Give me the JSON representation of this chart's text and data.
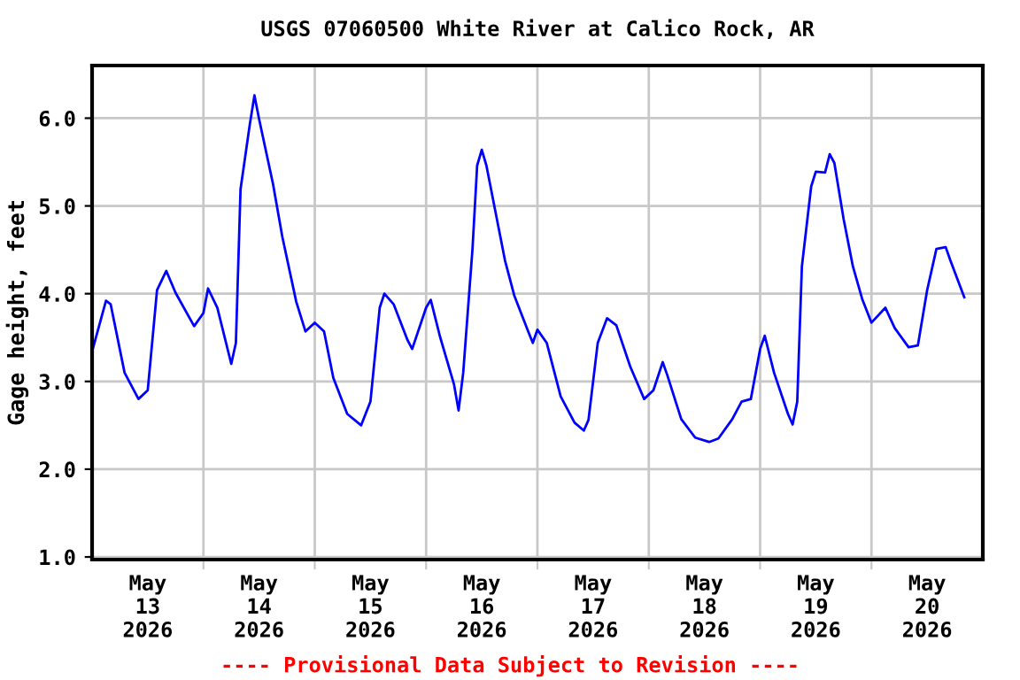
{
  "chart_data": {
    "type": "line",
    "title": "USGS 07060500 White River at Calico Rock, AR",
    "ylabel": "Gage height, feet",
    "annotations": [
      "---- Provisional Data Subject to Revision ----"
    ],
    "x": [
      "2026-05-13T00:00",
      "2026-05-13T03:00",
      "2026-05-13T04:00",
      "2026-05-13T07:00",
      "2026-05-13T10:00",
      "2026-05-13T12:00",
      "2026-05-13T14:00",
      "2026-05-13T16:00",
      "2026-05-13T18:00",
      "2026-05-13T22:00",
      "2026-05-14T00:00",
      "2026-05-14T01:00",
      "2026-05-14T03:00",
      "2026-05-14T06:00",
      "2026-05-14T07:00",
      "2026-05-14T08:00",
      "2026-05-14T10:00",
      "2026-05-14T11:00",
      "2026-05-14T12:00",
      "2026-05-14T15:00",
      "2026-05-14T17:00",
      "2026-05-14T20:00",
      "2026-05-14T22:00",
      "2026-05-15T00:00",
      "2026-05-15T02:00",
      "2026-05-15T04:00",
      "2026-05-15T07:00",
      "2026-05-15T10:00",
      "2026-05-15T12:00",
      "2026-05-15T14:00",
      "2026-05-15T15:00",
      "2026-05-15T17:00",
      "2026-05-15T20:00",
      "2026-05-15T21:00",
      "2026-05-16T00:00",
      "2026-05-16T01:00",
      "2026-05-16T03:00",
      "2026-05-16T06:00",
      "2026-05-16T07:00",
      "2026-05-16T08:00",
      "2026-05-16T10:00",
      "2026-05-16T11:00",
      "2026-05-16T12:00",
      "2026-05-16T13:00",
      "2026-05-16T15:00",
      "2026-05-16T17:00",
      "2026-05-16T19:00",
      "2026-05-16T22:00",
      "2026-05-16T23:00",
      "2026-05-17T00:00",
      "2026-05-17T02:00",
      "2026-05-17T05:00",
      "2026-05-17T08:00",
      "2026-05-17T10:00",
      "2026-05-17T11:00",
      "2026-05-17T13:00",
      "2026-05-17T15:00",
      "2026-05-17T17:00",
      "2026-05-17T20:00",
      "2026-05-17T23:00",
      "2026-05-18T01:00",
      "2026-05-18T03:00",
      "2026-05-18T04:00",
      "2026-05-18T07:00",
      "2026-05-18T10:00",
      "2026-05-18T13:00",
      "2026-05-18T15:00",
      "2026-05-18T18:00",
      "2026-05-18T20:00",
      "2026-05-18T22:00",
      "2026-05-19T00:00",
      "2026-05-19T01:00",
      "2026-05-19T03:00",
      "2026-05-19T06:00",
      "2026-05-19T07:00",
      "2026-05-19T08:00",
      "2026-05-19T09:00",
      "2026-05-19T11:00",
      "2026-05-19T12:00",
      "2026-05-19T14:00",
      "2026-05-19T15:00",
      "2026-05-19T16:00",
      "2026-05-19T18:00",
      "2026-05-19T20:00",
      "2026-05-19T22:00",
      "2026-05-20T00:00",
      "2026-05-20T03:00",
      "2026-05-20T05:00",
      "2026-05-20T08:00",
      "2026-05-20T10:00",
      "2026-05-20T12:00",
      "2026-05-20T14:00",
      "2026-05-20T16:00",
      "2026-05-20T17:00",
      "2026-05-20T20:00"
    ],
    "series": [
      {
        "color": "#0000ff",
        "values": [
          3.34,
          3.92,
          3.88,
          3.1,
          2.8,
          2.9,
          4.04,
          4.26,
          4.01,
          3.63,
          3.78,
          4.06,
          3.84,
          3.2,
          3.44,
          5.19,
          5.93,
          6.26,
          5.99,
          5.25,
          4.65,
          3.91,
          3.57,
          3.67,
          3.57,
          3.04,
          2.63,
          2.5,
          2.77,
          3.84,
          4.0,
          3.88,
          3.47,
          3.37,
          3.84,
          3.93,
          3.51,
          2.97,
          2.67,
          3.1,
          4.51,
          5.46,
          5.64,
          5.46,
          4.92,
          4.38,
          3.98,
          3.57,
          3.44,
          3.59,
          3.44,
          2.83,
          2.53,
          2.44,
          2.56,
          3.44,
          3.72,
          3.64,
          3.17,
          2.8,
          2.9,
          3.22,
          3.07,
          2.57,
          2.36,
          2.31,
          2.35,
          2.57,
          2.77,
          2.8,
          3.37,
          3.52,
          3.1,
          2.63,
          2.51,
          2.77,
          4.31,
          5.22,
          5.39,
          5.38,
          5.59,
          5.49,
          4.85,
          4.31,
          3.94,
          3.67,
          3.84,
          3.61,
          3.39,
          3.41,
          4.04,
          4.51,
          4.53,
          4.38,
          3.96
        ]
      }
    ],
    "xlim": [
      "2026-05-13T00:00",
      "2026-05-21T00:00"
    ],
    "xticks": [
      {
        "value": "2026-05-14T00:00",
        "label": null
      },
      {
        "value": "2026-05-15T00:00",
        "label": null
      },
      {
        "value": "2026-05-16T00:00",
        "label": null
      },
      {
        "value": "2026-05-17T00:00",
        "label": null
      },
      {
        "value": "2026-05-18T00:00",
        "label": null
      },
      {
        "value": "2026-05-19T00:00",
        "label": null
      },
      {
        "value": "2026-05-20T00:00",
        "label": null
      },
      {
        "value": "2026-05-13T12:00",
        "label": "May\n13\n2026"
      },
      {
        "value": "2026-05-14T12:00",
        "label": "May\n14\n2026"
      },
      {
        "value": "2026-05-15T12:00",
        "label": "May\n15\n2026"
      },
      {
        "value": "2026-05-16T12:00",
        "label": "May\n16\n2026"
      },
      {
        "value": "2026-05-17T12:00",
        "label": "May\n17\n2026"
      },
      {
        "value": "2026-05-18T12:00",
        "label": "May\n18\n2026"
      },
      {
        "value": "2026-05-19T12:00",
        "label": "May\n19\n2026"
      },
      {
        "value": "2026-05-20T12:00",
        "label": "May\n20\n2026"
      }
    ],
    "ylim": [
      0.97,
      6.6
    ],
    "yticks": [
      {
        "value": 1,
        "label": "1.0"
      },
      {
        "value": 2,
        "label": "2.0"
      },
      {
        "value": 3,
        "label": "3.0"
      },
      {
        "value": 4,
        "label": "4.0"
      },
      {
        "value": 5,
        "label": "5.0"
      },
      {
        "value": 6,
        "label": "6.0"
      }
    ],
    "grid": true,
    "legend": false,
    "marker": "none",
    "line_style": "solid"
  }
}
